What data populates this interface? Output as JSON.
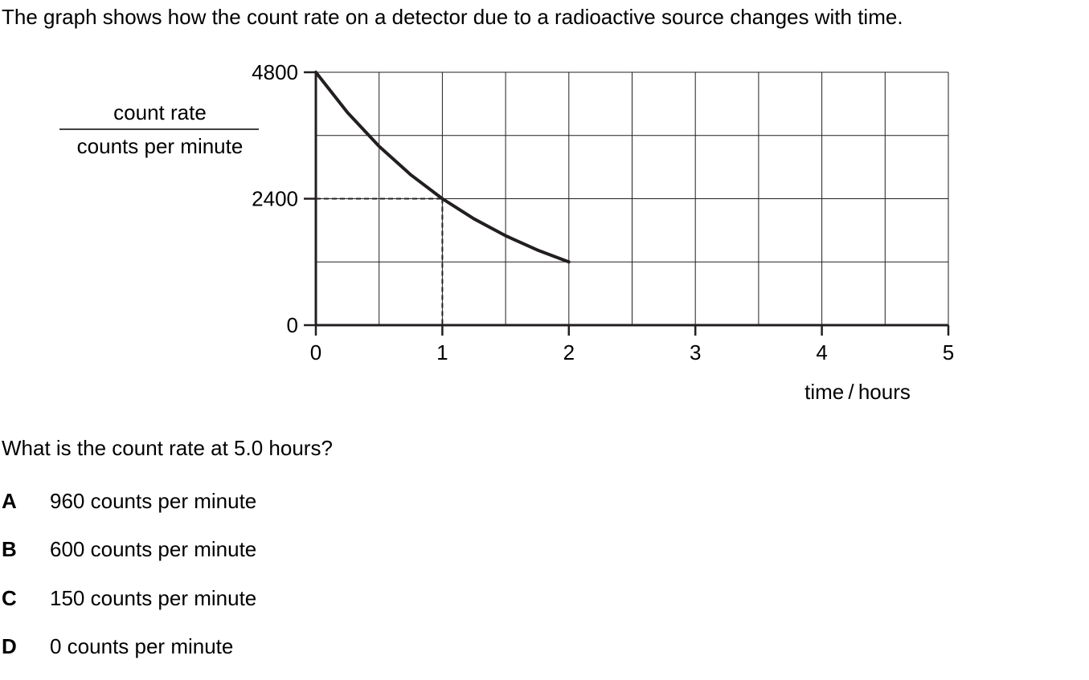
{
  "question": {
    "intro": "The graph shows how the count rate on a detector due to a radioactive source changes with time.",
    "prompt": "What is the count rate at 5.0 hours?",
    "options": [
      {
        "letter": "A",
        "text": "960 counts per minute"
      },
      {
        "letter": "B",
        "text": "600 counts per minute"
      },
      {
        "letter": "C",
        "text": "150 counts per minute"
      },
      {
        "letter": "D",
        "text": "0 counts per minute"
      }
    ]
  },
  "chart_data": {
    "type": "line",
    "ylabel_top": "count rate",
    "ylabel_bottom": "counts per minute",
    "xlabel": "time / hours",
    "xlim": [
      0,
      5
    ],
    "ylim": [
      0,
      4800
    ],
    "x_ticks": [
      0,
      1,
      2,
      3,
      4,
      5
    ],
    "y_tick_labels": [
      {
        "value": 4800,
        "label": "4800"
      },
      {
        "value": 2400,
        "label": "2400"
      },
      {
        "value": 0,
        "label": "0"
      }
    ],
    "grid": true,
    "grid_x_step": 0.5,
    "grid_y_step": 1200,
    "series": [
      {
        "x": [
          0,
          0.25,
          0.5,
          0.75,
          1,
          1.25,
          1.5,
          1.75,
          2
        ],
        "y": [
          4800,
          4036,
          3394,
          2854,
          2400,
          2018,
          1697,
          1427,
          1200
        ],
        "color": "#231f20"
      }
    ],
    "guide_point": {
      "x": 1,
      "y": 2400
    }
  }
}
